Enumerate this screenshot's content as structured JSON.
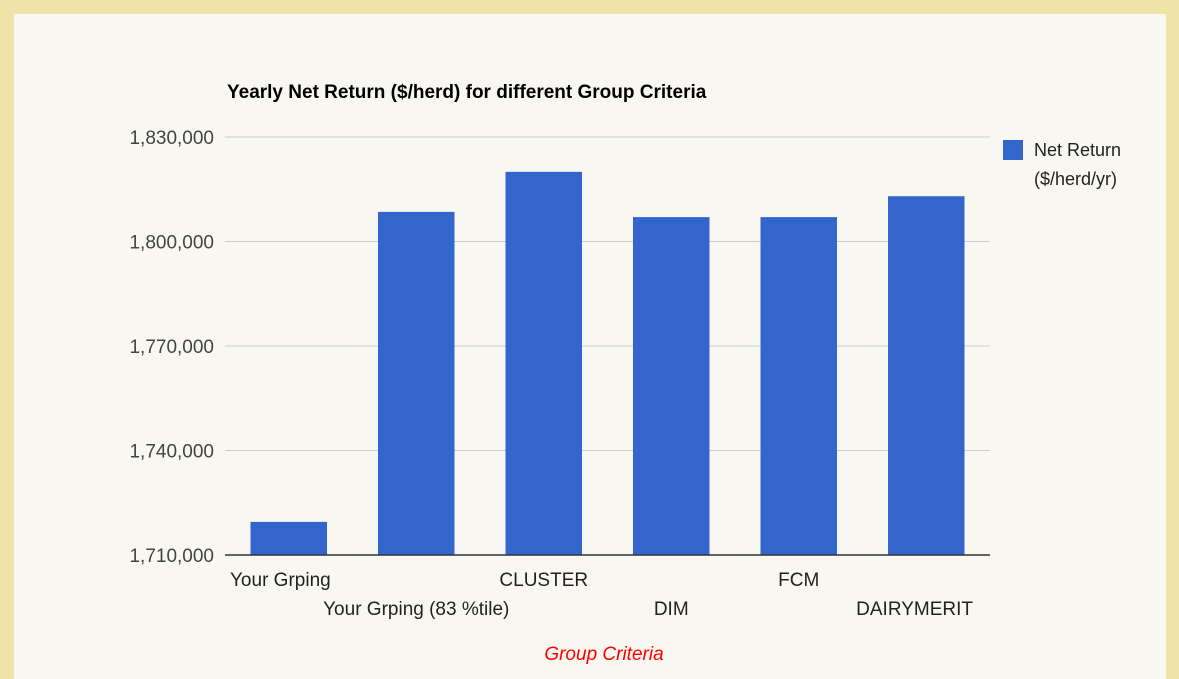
{
  "chart_data": {
    "type": "bar",
    "title": "Yearly Net Return ($/herd) for different Group Criteria",
    "xlabel": "Group Criteria",
    "ylabel": "",
    "categories": [
      "Your Grping",
      "Your Grping (83 %tile)",
      "CLUSTER",
      "DIM",
      "FCM",
      "DAIRYMERIT"
    ],
    "series": [
      {
        "name": "Net Return ($/herd/yr)",
        "values": [
          1719500,
          1808500,
          1820000,
          1807000,
          1807000,
          1813000
        ]
      }
    ],
    "ylim": [
      1710000,
      1830000
    ],
    "yticks": [
      1710000,
      1740000,
      1770000,
      1800000,
      1830000
    ],
    "ytick_labels": [
      "1,710,000",
      "1,740,000",
      "1,770,000",
      "1,800,000",
      "1,830,000"
    ],
    "legend": {
      "position": "right",
      "lines": [
        "Net Return",
        "($/herd/yr)"
      ]
    },
    "grid": true,
    "colors": {
      "bar": "#3366cc",
      "gridline": "#cccccc",
      "baseline": "#333333",
      "xlabel": "#ff0000",
      "background": "#f8f7f2",
      "border": "#efe3a8"
    }
  }
}
